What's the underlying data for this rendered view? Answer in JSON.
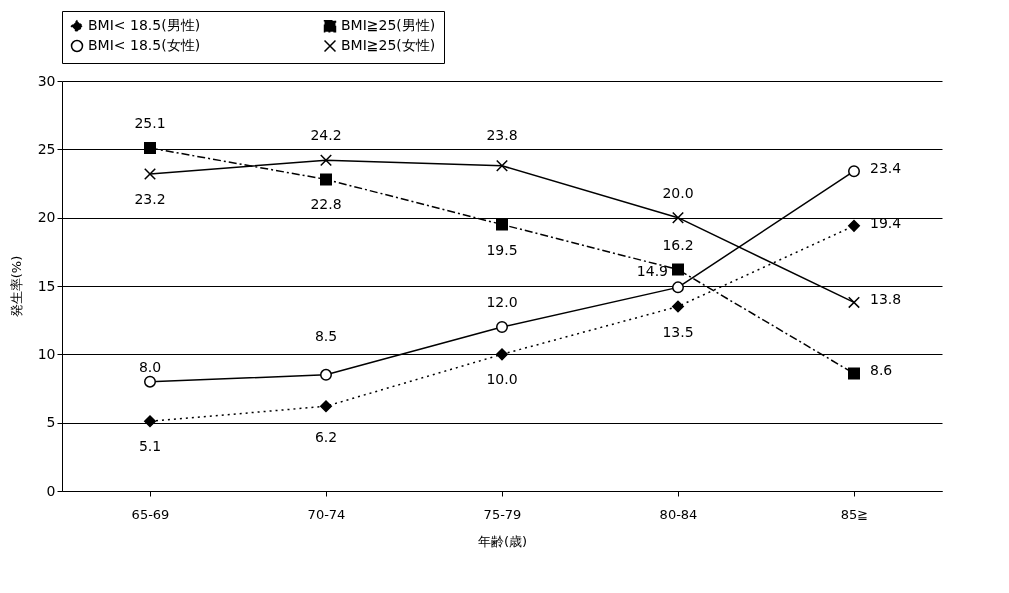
{
  "chart_data": {
    "type": "line",
    "xlabel": "年齢(歳)",
    "ylabel": "発生率(%)",
    "categories": [
      "65-69",
      "70-74",
      "75-79",
      "80-84",
      "85≧"
    ],
    "ylim": [
      0,
      30
    ],
    "yticks": [
      0,
      5,
      10,
      15,
      20,
      25,
      30
    ],
    "grid": "y",
    "legend": "top",
    "data_labels": true,
    "series": [
      {
        "name": "BMI< 18.5(男性)",
        "color": "#000000",
        "marker": "diamond",
        "line_style": "dotted",
        "values": [
          5.1,
          6.2,
          10.0,
          13.5,
          19.4
        ],
        "value_labels": [
          "5.1",
          "6.2",
          "10.0",
          "13.5",
          "19.4"
        ]
      },
      {
        "name": "BMI≧25(男性)",
        "color": "#000000",
        "marker": "square",
        "line_style": "dashed",
        "values": [
          25.1,
          22.8,
          19.5,
          16.2,
          8.6
        ],
        "value_labels": [
          "25.1",
          "22.8",
          "19.5",
          "16.2",
          "8.6"
        ]
      },
      {
        "name": "BMI< 18.5(女性)",
        "color": "#000000",
        "marker": "circle",
        "line_style": "solid",
        "values": [
          8.0,
          8.5,
          12.0,
          14.9,
          23.4
        ],
        "value_labels": [
          "8.0",
          "8.5",
          "12.0",
          "14.9",
          "23.4"
        ]
      },
      {
        "name": "BMI≧25(女性)",
        "color": "#000000",
        "marker": "cross",
        "line_style": "solid",
        "values": [
          23.2,
          24.2,
          23.8,
          20.0,
          13.8
        ],
        "value_labels": [
          "23.2",
          "24.2",
          "23.8",
          "20.0",
          "13.8"
        ]
      }
    ]
  }
}
